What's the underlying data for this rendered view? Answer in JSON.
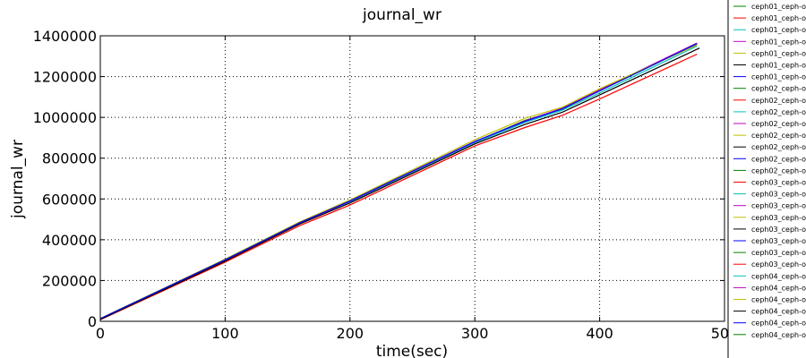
{
  "chart_data": {
    "type": "line",
    "title": "journal_wr",
    "xlabel": "time(sec)",
    "ylabel": "journal_wr",
    "xlim": [
      0,
      500
    ],
    "ylim": [
      0,
      1400000
    ],
    "xticks": [
      "0",
      "100",
      "200",
      "300",
      "400",
      "500"
    ],
    "yticks": [
      "0",
      "200000",
      "400000",
      "600000",
      "800000",
      "1000000",
      "1200000",
      "1400000"
    ],
    "grid": true,
    "legend_placement": "right, outside plot, cut off",
    "colors": [
      "#008000",
      "#ff0000",
      "#00bfbf",
      "#bf00bf",
      "#bfbf00",
      "#000000",
      "#0000ff"
    ],
    "legend": [
      "ceph01_ceph-o",
      "ceph01_ceph-o",
      "ceph01_ceph-o",
      "ceph01_ceph-o",
      "ceph01_ceph-o",
      "ceph01_ceph-o",
      "ceph01_ceph-o",
      "ceph02_ceph-o",
      "ceph02_ceph-o",
      "ceph02_ceph-o",
      "ceph02_ceph-o",
      "ceph02_ceph-o",
      "ceph02_ceph-o",
      "ceph02_ceph-o",
      "ceph02_ceph-o",
      "ceph03_ceph-o",
      "ceph03_ceph-o",
      "ceph03_ceph-o",
      "ceph03_ceph-o",
      "ceph03_ceph-o",
      "ceph03_ceph-o",
      "ceph03_ceph-o",
      "ceph03_ceph-o",
      "ceph04_ceph-o",
      "ceph04_ceph-o",
      "ceph04_ceph-o",
      "ceph04_ceph-o",
      "ceph04_ceph-o",
      "ceph04_ceph-o"
    ],
    "series": [
      {
        "x": [
          0,
          100,
          160,
          200,
          300,
          340,
          370,
          400,
          478
        ],
        "y": [
          10000,
          300000,
          485000,
          590000,
          880000,
          985000,
          1040000,
          1130000,
          1360000
        ]
      },
      {
        "x": [
          0,
          100,
          160,
          200,
          300,
          340,
          370,
          400,
          478
        ],
        "y": [
          8000,
          290000,
          470000,
          570000,
          860000,
          950000,
          1010000,
          1090000,
          1310000
        ]
      },
      {
        "x": [
          0,
          100,
          160,
          200,
          300,
          340,
          370,
          400,
          478
        ],
        "y": [
          12000,
          298000,
          480000,
          585000,
          875000,
          975000,
          1035000,
          1120000,
          1350000
        ]
      },
      {
        "x": [
          0,
          100,
          160,
          200,
          300,
          340,
          370,
          400,
          478
        ],
        "y": [
          11000,
          300000,
          482000,
          588000,
          880000,
          982000,
          1045000,
          1135000,
          1365000
        ]
      },
      {
        "x": [
          0,
          100,
          160,
          200,
          300,
          340,
          370,
          400,
          478
        ],
        "y": [
          14000,
          305000,
          488000,
          595000,
          890000,
          995000,
          1050000,
          1140000,
          1355000
        ]
      },
      {
        "x": [
          0,
          100,
          160,
          200,
          300,
          340,
          370,
          400,
          480
        ],
        "y": [
          9000,
          295000,
          478000,
          580000,
          870000,
          965000,
          1025000,
          1110000,
          1340000
        ]
      },
      {
        "x": [
          0,
          100,
          160,
          200,
          300,
          340,
          370,
          400,
          478
        ],
        "y": [
          13000,
          302000,
          484000,
          590000,
          882000,
          980000,
          1042000,
          1130000,
          1362000
        ]
      }
    ]
  }
}
